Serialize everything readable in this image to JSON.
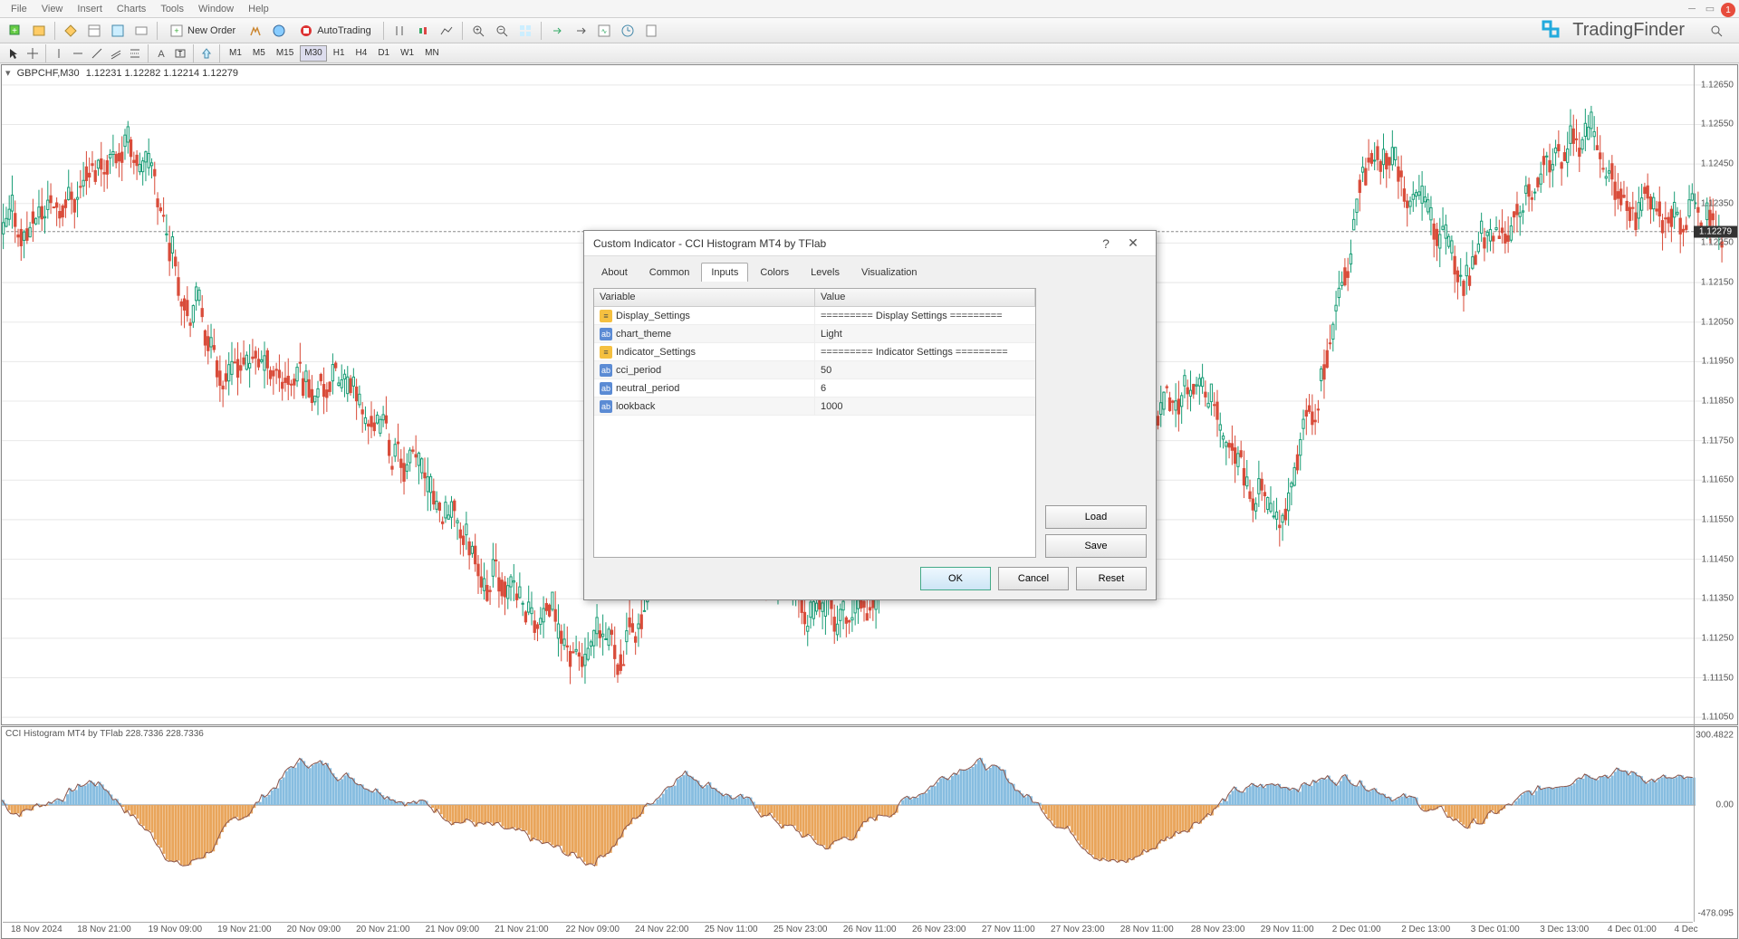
{
  "menu": {
    "items": [
      "File",
      "View",
      "Insert",
      "Charts",
      "Tools",
      "Window",
      "Help"
    ]
  },
  "toolbar": {
    "new_order": "New Order",
    "autotrading": "AutoTrading"
  },
  "logo_text": "TradingFinder",
  "notif_count": "1",
  "timeframes": [
    "M1",
    "M5",
    "M15",
    "M30",
    "H1",
    "H4",
    "D1",
    "W1",
    "MN"
  ],
  "timeframe_active": 3,
  "chart": {
    "symbol": "GBPCHF,M30",
    "ohlc": "1.12231 1.12282 1.12214 1.12279",
    "price_tag": "1.12279",
    "y_ticks": [
      "1.12650",
      "1.12550",
      "1.12450",
      "1.12350",
      "1.12250",
      "1.12150",
      "1.12050",
      "1.11950",
      "1.11850",
      "1.11750",
      "1.11650",
      "1.11550",
      "1.11450",
      "1.11350",
      "1.11250",
      "1.11150",
      "1.11050"
    ],
    "y_min": 1.11,
    "y_max": 1.127,
    "price_line_y_frac": 0.2476
  },
  "indicator": {
    "header": "CCI Histogram MT4 by TFlab 228.7336 228.7336",
    "y_top": "300.4822",
    "y_mid": "0.00",
    "y_bot": "-478.095"
  },
  "x_ticks": [
    {
      "pos": 0.02,
      "label": "18 Nov 2024"
    },
    {
      "pos": 0.06,
      "label": "18 Nov 21:00"
    },
    {
      "pos": 0.102,
      "label": "19 Nov 09:00"
    },
    {
      "pos": 0.143,
      "label": "19 Nov 21:00"
    },
    {
      "pos": 0.184,
      "label": "20 Nov 09:00"
    },
    {
      "pos": 0.225,
      "label": "20 Nov 21:00"
    },
    {
      "pos": 0.266,
      "label": "21 Nov 09:00"
    },
    {
      "pos": 0.307,
      "label": "21 Nov 21:00"
    },
    {
      "pos": 0.349,
      "label": "22 Nov 09:00"
    },
    {
      "pos": 0.39,
      "label": "24 Nov 22:00"
    },
    {
      "pos": 0.431,
      "label": "25 Nov 11:00"
    },
    {
      "pos": 0.472,
      "label": "25 Nov 23:00"
    },
    {
      "pos": 0.513,
      "label": "26 Nov 11:00"
    },
    {
      "pos": 0.554,
      "label": "26 Nov 23:00"
    },
    {
      "pos": 0.595,
      "label": "27 Nov 11:00"
    },
    {
      "pos": 0.636,
      "label": "27 Nov 23:00"
    },
    {
      "pos": 0.677,
      "label": "28 Nov 11:00"
    },
    {
      "pos": 0.719,
      "label": "28 Nov 23:00"
    },
    {
      "pos": 0.76,
      "label": "29 Nov 11:00"
    },
    {
      "pos": 0.801,
      "label": "2 Dec 01:00"
    },
    {
      "pos": 0.842,
      "label": "2 Dec 13:00"
    },
    {
      "pos": 0.883,
      "label": "3 Dec 01:00"
    },
    {
      "pos": 0.924,
      "label": "3 Dec 13:00"
    },
    {
      "pos": 0.964,
      "label": "4 Dec 01:00"
    },
    {
      "pos": 0.996,
      "label": "4 Dec"
    }
  ],
  "dialog": {
    "title": "Custom Indicator - CCI Histogram MT4 by TFlab",
    "tabs": [
      "About",
      "Common",
      "Inputs",
      "Colors",
      "Levels",
      "Visualization"
    ],
    "active_tab": 2,
    "head_var": "Variable",
    "head_val": "Value",
    "rows": [
      {
        "type": "section",
        "var": "Display_Settings",
        "val": "========= Display Settings ========="
      },
      {
        "type": "param",
        "var": "chart_theme",
        "val": "Light"
      },
      {
        "type": "section",
        "var": "Indicator_Settings",
        "val": "========= Indicator Settings ========="
      },
      {
        "type": "param",
        "var": "cci_period",
        "val": "50"
      },
      {
        "type": "param",
        "var": "neutral_period",
        "val": "6"
      },
      {
        "type": "param",
        "var": "lookback",
        "val": "1000"
      }
    ],
    "load": "Load",
    "save": "Save",
    "ok": "OK",
    "cancel": "Cancel",
    "reset": "Reset"
  },
  "colors": {
    "up": "#1b9e77",
    "down": "#d94c3a",
    "hist_pos": "#87bde0",
    "hist_neg": "#e9a55b",
    "hist_line": "#8c564b",
    "grid": "#e8e8e8"
  }
}
